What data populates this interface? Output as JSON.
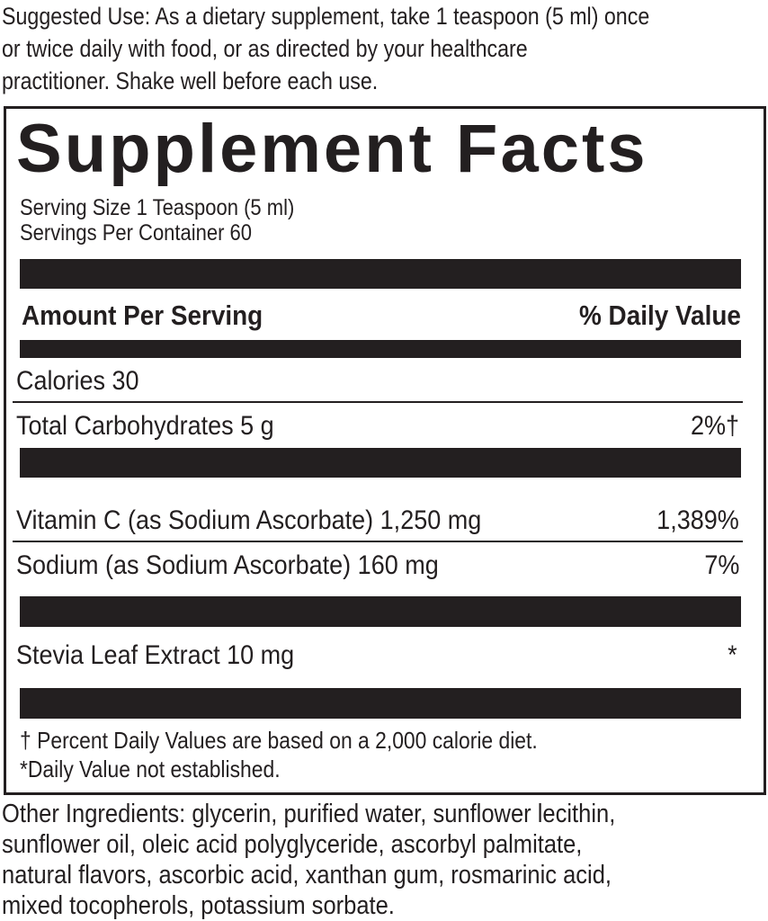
{
  "suggested_use": [
    "Suggested Use: As a dietary supplement, take 1 teaspoon (5 ml) once",
    "or twice daily with food, or as directed by your healthcare",
    "practitioner. Shake well before each use."
  ],
  "facts": {
    "title": "Supplement Facts",
    "serving_size": "Serving Size 1 Teaspoon (5 ml)",
    "servings_per_container": "Servings Per Container 60",
    "amount_header": "Amount Per Serving",
    "dv_header": "% Daily Value",
    "rows": [
      {
        "label": "Calories 30",
        "dv": ""
      },
      {
        "label": "Total Carbohydrates 5 g",
        "dv": "2%†"
      },
      {
        "label": "Vitamin C (as Sodium Ascorbate) 1,250 mg",
        "dv": "1,389%"
      },
      {
        "label": "Sodium (as Sodium Ascorbate) 160 mg",
        "dv": "7%"
      },
      {
        "label": "Stevia Leaf Extract 10 mg",
        "dv": "*"
      }
    ],
    "footnote_1": "† Percent Daily Values are based on a 2,000 calorie diet.",
    "footnote_2": "*Daily Value not established."
  },
  "other_ingredients": [
    "Other Ingredients: glycerin, purified water, sunflower lecithin,",
    "sunflower oil, oleic acid polyglyceride, ascorbyl palmitate,",
    "natural flavors, ascorbic acid, xanthan gum, rosmarinic acid,",
    "mixed tocopherols, potassium sorbate."
  ]
}
